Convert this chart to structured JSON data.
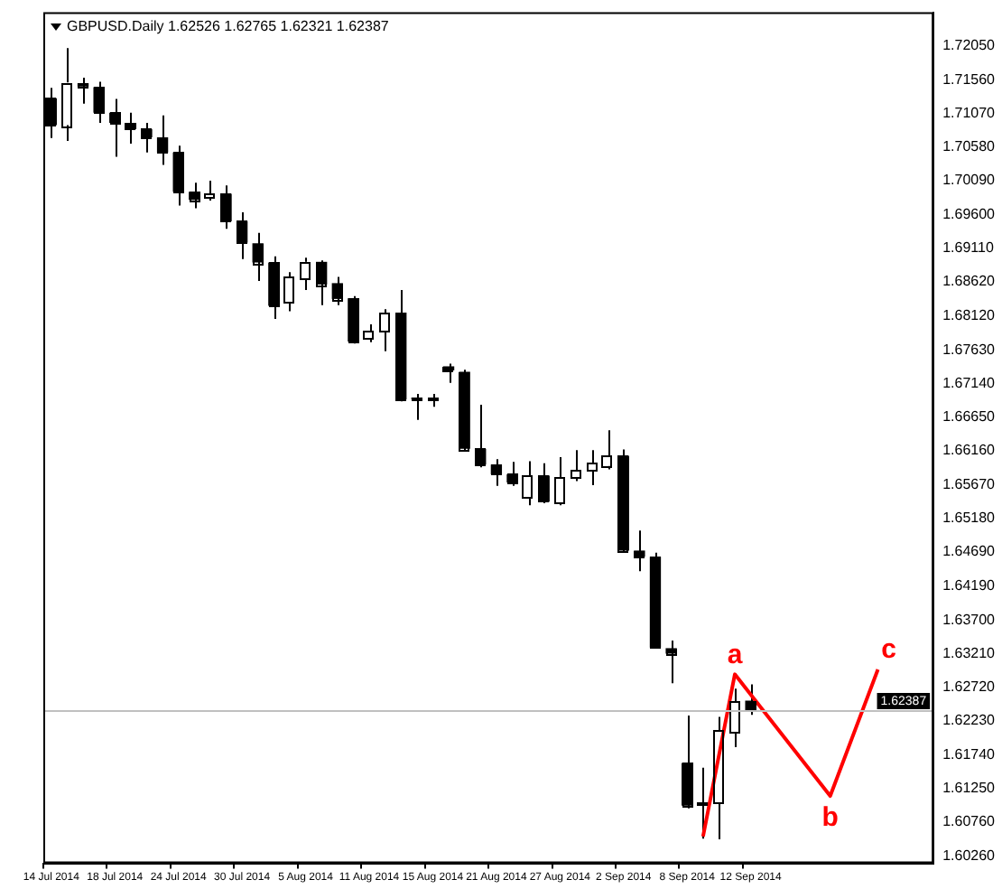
{
  "chart_data": {
    "type": "candlestick",
    "title": "GBPUSD.Daily 1.62526 1.62765 1.62321 1.62387",
    "categories": [
      "14 Jul 2014",
      null,
      null,
      null,
      "18 Jul 2014",
      null,
      null,
      null,
      "24 Jul 2014",
      null,
      null,
      null,
      "30 Jul 2014",
      null,
      null,
      null,
      "5 Aug 2014",
      null,
      null,
      null,
      "11 Aug 2014",
      null,
      null,
      null,
      "15 Aug 2014",
      null,
      null,
      null,
      "21 Aug 2014",
      null,
      null,
      null,
      "27 Aug 2014",
      null,
      null,
      null,
      "2 Sep 2014",
      null,
      null,
      null,
      "8 Sep 2014",
      null,
      null,
      null,
      "12 Sep 2014",
      null,
      null,
      null,
      null,
      null,
      null,
      null,
      null,
      null,
      null,
      null
    ],
    "ohlc": [
      [
        1.7129,
        1.7144,
        1.7071,
        1.709
      ],
      [
        1.709,
        1.7202,
        1.7067,
        1.7152
      ],
      [
        1.7151,
        1.7159,
        1.7121,
        1.7146
      ],
      [
        1.7145,
        1.7153,
        1.7093,
        1.7108
      ],
      [
        1.7108,
        1.7128,
        1.7044,
        1.7093
      ],
      [
        1.7093,
        1.7108,
        1.7063,
        1.7084
      ],
      [
        1.7084,
        1.7093,
        1.705,
        1.7072
      ],
      [
        1.7072,
        1.7104,
        1.7032,
        1.705
      ],
      [
        1.705,
        1.706,
        1.6973,
        1.6993
      ],
      [
        1.6993,
        1.7006,
        1.6969,
        1.6981
      ],
      [
        1.6985,
        1.7009,
        1.698,
        1.699
      ],
      [
        1.699,
        1.7002,
        1.6939,
        1.695
      ],
      [
        1.695,
        1.6963,
        1.6895,
        1.6919
      ],
      [
        1.6918,
        1.6933,
        1.6863,
        1.689
      ],
      [
        1.689,
        1.6899,
        1.6808,
        1.6827
      ],
      [
        1.6832,
        1.6876,
        1.6819,
        1.6869
      ],
      [
        1.6867,
        1.6897,
        1.685,
        1.6891
      ],
      [
        1.6891,
        1.6893,
        1.6828,
        1.6858
      ],
      [
        1.686,
        1.6869,
        1.6828,
        1.6837
      ],
      [
        1.6838,
        1.6841,
        1.6772,
        1.6775
      ],
      [
        1.678,
        1.68,
        1.6774,
        1.679
      ],
      [
        1.679,
        1.6822,
        1.6761,
        1.6817
      ],
      [
        1.6817,
        1.685,
        1.6688,
        1.6691
      ],
      [
        1.6692,
        1.6699,
        1.6661,
        1.6691
      ],
      [
        1.6691,
        1.6699,
        1.668,
        1.6692
      ],
      [
        1.6739,
        1.6743,
        1.6715,
        1.6733
      ],
      [
        1.6731,
        1.6734,
        1.6615,
        1.6619
      ],
      [
        1.6619,
        1.6683,
        1.6592,
        1.6596
      ],
      [
        1.6596,
        1.6604,
        1.6565,
        1.6582
      ],
      [
        1.6582,
        1.66,
        1.6565,
        1.657
      ],
      [
        1.6548,
        1.6601,
        1.6537,
        1.658
      ],
      [
        1.658,
        1.6598,
        1.654,
        1.6542
      ],
      [
        1.654,
        1.6607,
        1.6537,
        1.6578
      ],
      [
        1.6578,
        1.6617,
        1.6572,
        1.6588
      ],
      [
        1.6588,
        1.6617,
        1.6566,
        1.6598
      ],
      [
        1.6594,
        1.6646,
        1.6589,
        1.6609
      ],
      [
        1.6609,
        1.6618,
        1.6469,
        1.6471
      ],
      [
        1.6471,
        1.65,
        1.6441,
        1.6462
      ],
      [
        1.6462,
        1.6468,
        1.6329,
        1.633
      ],
      [
        1.6329,
        1.634,
        1.6278,
        1.6321
      ],
      [
        1.6162,
        1.6231,
        1.6096,
        1.61
      ],
      [
        1.6103,
        1.6155,
        1.6052,
        1.6102
      ],
      [
        1.6103,
        1.6229,
        1.6051,
        1.6209
      ],
      [
        1.6207,
        1.627,
        1.6185,
        1.6252
      ],
      [
        1.62526,
        1.62765,
        1.62321,
        1.62387
      ],
      null,
      null,
      null,
      null,
      null,
      null,
      null,
      null,
      null,
      null,
      null
    ],
    "colors": [
      "#000000",
      "#ffffff",
      "#000000",
      "#000000",
      "#000000",
      "#000000",
      "#000000",
      "#000000",
      "#000000",
      "#000000",
      "#ffffff",
      "#000000",
      "#000000",
      "#000000",
      "#000000",
      "#ffffff",
      "#ffffff",
      "#000000",
      "#000000",
      "#000000",
      "#ffffff",
      "#ffffff",
      "#000000",
      "#000000",
      "#ffffff",
      "#000000",
      "#000000",
      "#000000",
      "#000000",
      "#000000",
      "#ffffff",
      "#000000",
      "#ffffff",
      "#ffffff",
      "#ffffff",
      "#ffffff",
      "#000000",
      "#000000",
      "#000000",
      "#000000",
      "#000000",
      "#000000",
      "#ffffff",
      "#ffffff",
      "#000000",
      null,
      null,
      null,
      null,
      null,
      null,
      null,
      null,
      null,
      null,
      null
    ],
    "color": "#000000",
    "series": [
      {
        "type": "line",
        "color": "#ff0000",
        "values": [
          null,
          null,
          null,
          null,
          null,
          null,
          null,
          null,
          null,
          null,
          null,
          null,
          null,
          null,
          null,
          null,
          null,
          null,
          null,
          null,
          null,
          null,
          null,
          null,
          null,
          null,
          null,
          null,
          null,
          null,
          null,
          null,
          null,
          null,
          null,
          null,
          null,
          null,
          null,
          null,
          null,
          1.6055,
          null,
          1.6291,
          null,
          null,
          null,
          null,
          null,
          1.6114,
          null,
          null,
          1.6298,
          null,
          null,
          null
        ],
        "value_labels": [
          null,
          null,
          null,
          null,
          null,
          null,
          null,
          null,
          null,
          null,
          null,
          null,
          null,
          null,
          null,
          null,
          null,
          null,
          null,
          null,
          null,
          null,
          null,
          null,
          null,
          null,
          null,
          null,
          null,
          null,
          null,
          null,
          null,
          null,
          null,
          null,
          null,
          null,
          null,
          null,
          null,
          null,
          null,
          "a",
          null,
          null,
          null,
          null,
          null,
          "b",
          null,
          null,
          "c",
          null,
          null,
          null
        ]
      }
    ],
    "ylim": [
      1.6016,
      1.7254
    ],
    "yticks": [
      {
        "value": 1.7205,
        "label": "1.72050"
      },
      {
        "value": 1.7156,
        "label": "1.71560"
      },
      {
        "value": 1.7107,
        "label": "1.71070"
      },
      {
        "value": 1.7058,
        "label": "1.70580"
      },
      {
        "value": 1.7009,
        "label": "1.70090"
      },
      {
        "value": 1.696,
        "label": "1.69600"
      },
      {
        "value": 1.6911,
        "label": "1.69110"
      },
      {
        "value": 1.6862,
        "label": "1.68620"
      },
      {
        "value": 1.6812,
        "label": "1.68120"
      },
      {
        "value": 1.6763,
        "label": "1.67630"
      },
      {
        "value": 1.6714,
        "label": "1.67140"
      },
      {
        "value": 1.6665,
        "label": "1.66650"
      },
      {
        "value": 1.6616,
        "label": "1.66160"
      },
      {
        "value": 1.6567,
        "label": "1.65670"
      },
      {
        "value": 1.6518,
        "label": "1.65180"
      },
      {
        "value": 1.6469,
        "label": "1.64690"
      },
      {
        "value": 1.6419,
        "label": "1.64190"
      },
      {
        "value": 1.637,
        "label": "1.63700"
      },
      {
        "value": 1.6321,
        "label": "1.63210"
      },
      {
        "value": 1.6272,
        "label": "1.62720"
      },
      {
        "value": 1.6223,
        "label": "1.62230"
      },
      {
        "value": 1.6174,
        "label": "1.61740"
      },
      {
        "value": 1.6125,
        "label": "1.61250"
      },
      {
        "value": 1.6076,
        "label": "1.60760"
      },
      {
        "value": 1.6026,
        "label": "1.60260"
      }
    ],
    "ref_lines": [
      {
        "axis": "y",
        "value": 1.62387,
        "label": "1.62387",
        "color": "#c0c0c0"
      }
    ]
  }
}
